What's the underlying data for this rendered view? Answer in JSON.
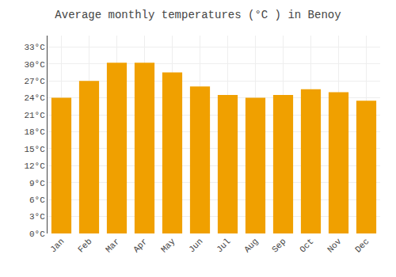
{
  "chart_data": {
    "type": "bar",
    "title": "Average monthly temperatures (°C ) in Benoy",
    "categories": [
      "Jan",
      "Feb",
      "Mar",
      "Apr",
      "May",
      "Jun",
      "Jul",
      "Aug",
      "Sep",
      "Oct",
      "Nov",
      "Dec"
    ],
    "values": [
      24,
      27,
      30.2,
      30.2,
      28.5,
      26,
      24.5,
      24,
      24.5,
      25.5,
      25,
      23.5
    ],
    "color": "#F0A000",
    "ylim": [
      0,
      35
    ],
    "yticks": [
      {
        "value": 0,
        "label": "0°C"
      },
      {
        "value": 3,
        "label": "3°C"
      },
      {
        "value": 6,
        "label": "6°C"
      },
      {
        "value": 9,
        "label": "9°C"
      },
      {
        "value": 12,
        "label": "12°C"
      },
      {
        "value": 15,
        "label": "15°C"
      },
      {
        "value": 18,
        "label": "18°C"
      },
      {
        "value": 21,
        "label": "21°C"
      },
      {
        "value": 24,
        "label": "24°C"
      },
      {
        "value": 27,
        "label": "27°C"
      },
      {
        "value": 30,
        "label": "30°C"
      },
      {
        "value": 33,
        "label": "33°C"
      }
    ],
    "grid": true
  }
}
